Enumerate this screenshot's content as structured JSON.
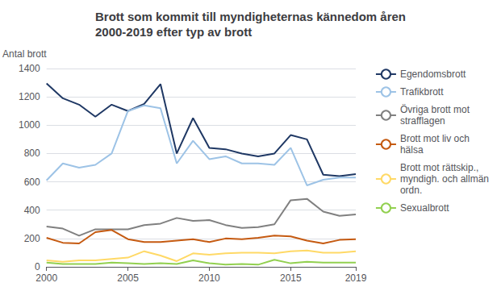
{
  "chart_data": {
    "type": "line",
    "title": "Brott som kommit till myndigheternas kännedom åren\n2000-2019 efter typ av brott",
    "ylabel": "Antal brott",
    "x": [
      2000,
      2001,
      2002,
      2003,
      2004,
      2005,
      2006,
      2007,
      2008,
      2009,
      2010,
      2011,
      2012,
      2013,
      2014,
      2015,
      2016,
      2017,
      2018,
      2019
    ],
    "series": [
      {
        "name": "Egendomsbrott",
        "color": "#1F3864",
        "values": [
          1295,
          1190,
          1145,
          1060,
          1145,
          1100,
          1150,
          1290,
          800,
          1050,
          840,
          830,
          800,
          780,
          800,
          930,
          900,
          650,
          640,
          655
        ]
      },
      {
        "name": "Trafikbrott",
        "color": "#9DC3E6",
        "values": [
          610,
          730,
          700,
          720,
          800,
          1100,
          1140,
          1120,
          730,
          890,
          760,
          780,
          730,
          730,
          720,
          840,
          575,
          615,
          630,
          630
        ]
      },
      {
        "name": "Övriga brott mot\nstrafflagen",
        "color": "#808080",
        "values": [
          285,
          270,
          220,
          265,
          265,
          265,
          295,
          305,
          345,
          325,
          330,
          295,
          275,
          280,
          300,
          470,
          480,
          390,
          360,
          370
        ]
      },
      {
        "name": "Brott mot liv och\nhälsa",
        "color": "#C55A11",
        "values": [
          205,
          170,
          165,
          245,
          260,
          195,
          175,
          175,
          185,
          195,
          175,
          200,
          195,
          205,
          220,
          215,
          185,
          165,
          190,
          195
        ]
      },
      {
        "name": "Brott mot rättskip.,\nmyndigh. och allmän\nordn.",
        "color": "#FFD966",
        "values": [
          45,
          35,
          45,
          45,
          55,
          65,
          110,
          80,
          40,
          95,
          85,
          95,
          100,
          100,
          95,
          110,
          115,
          100,
          100,
          110
        ]
      },
      {
        "name": "Sexualbrott",
        "color": "#92D050",
        "values": [
          30,
          20,
          20,
          20,
          30,
          25,
          20,
          25,
          20,
          45,
          25,
          15,
          20,
          15,
          50,
          25,
          35,
          30,
          30,
          30
        ]
      }
    ],
    "xlim": [
      2000,
      2019
    ],
    "xticks": [
      2000,
      2005,
      2010,
      2015,
      2019
    ],
    "ylim": [
      0,
      1400
    ],
    "yticks": [
      0,
      200,
      400,
      600,
      800,
      1000,
      1200,
      1400
    ],
    "grid": true,
    "legend": "right"
  }
}
